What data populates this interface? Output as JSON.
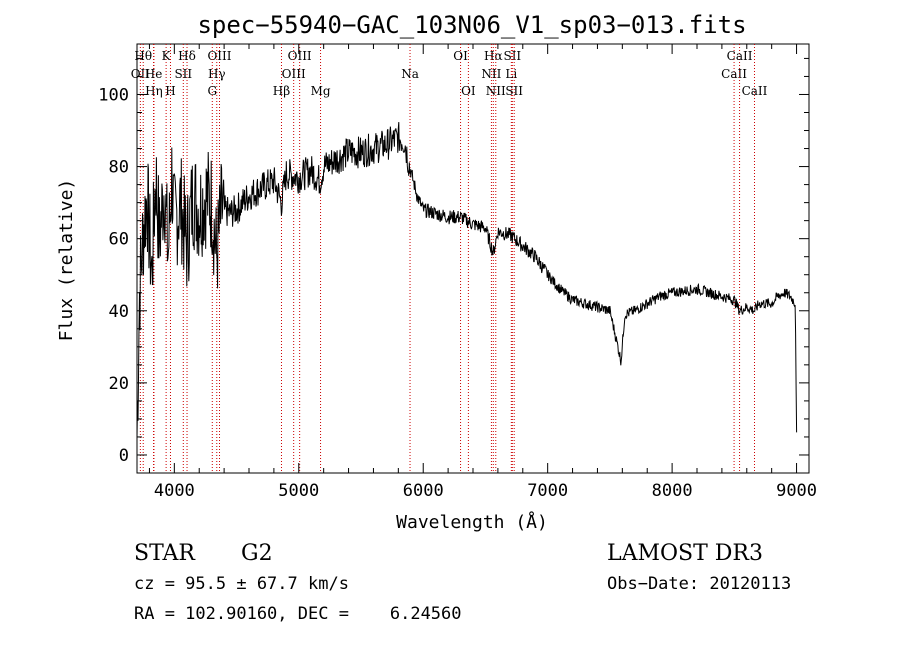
{
  "chart_data": {
    "type": "line",
    "title": "spec−55940−GAC_103N06_V1_sp03−013.fits",
    "xlabel": "Wavelength (Å)",
    "ylabel": "Flux (relative)",
    "xlim": [
      3700,
      9100
    ],
    "ylim": [
      -5,
      114
    ],
    "xticks": [
      4000,
      5000,
      6000,
      7000,
      8000,
      9000
    ],
    "yticks": [
      0,
      20,
      40,
      60,
      80,
      100
    ],
    "line_color": "#000000",
    "marker_color": "#cc0000",
    "spectrum": {
      "name": "flux",
      "anchors": [
        [
          3700,
          5
        ],
        [
          3720,
          45
        ],
        [
          3750,
          62
        ],
        [
          3780,
          72
        ],
        [
          3820,
          50
        ],
        [
          3850,
          78
        ],
        [
          3880,
          60
        ],
        [
          3920,
          75
        ],
        [
          3950,
          55
        ],
        [
          3980,
          78
        ],
        [
          4000,
          64
        ],
        [
          4050,
          70
        ],
        [
          4100,
          58
        ],
        [
          4150,
          72
        ],
        [
          4200,
          68
        ],
        [
          4250,
          72
        ],
        [
          4300,
          70
        ],
        [
          4340,
          55
        ],
        [
          4380,
          68
        ],
        [
          4450,
          67
        ],
        [
          4500,
          68
        ],
        [
          4600,
          72
        ],
        [
          4700,
          74
        ],
        [
          4800,
          76
        ],
        [
          4861,
          70
        ],
        [
          4900,
          78
        ],
        [
          5000,
          77
        ],
        [
          5100,
          79
        ],
        [
          5170,
          76
        ],
        [
          5200,
          80
        ],
        [
          5300,
          82
        ],
        [
          5400,
          84
        ],
        [
          5500,
          84
        ],
        [
          5600,
          85
        ],
        [
          5700,
          86
        ],
        [
          5800,
          88
        ],
        [
          5850,
          87
        ],
        [
          5890,
          80
        ],
        [
          5950,
          72
        ],
        [
          6000,
          68
        ],
        [
          6100,
          67
        ],
        [
          6200,
          66
        ],
        [
          6300,
          66
        ],
        [
          6400,
          64
        ],
        [
          6500,
          63
        ],
        [
          6563,
          56
        ],
        [
          6600,
          62
        ],
        [
          6700,
          61
        ],
        [
          6800,
          58
        ],
        [
          6900,
          55
        ],
        [
          7000,
          50
        ],
        [
          7100,
          46
        ],
        [
          7200,
          43
        ],
        [
          7300,
          42
        ],
        [
          7400,
          41
        ],
        [
          7500,
          40
        ],
        [
          7590,
          26
        ],
        [
          7620,
          39
        ],
        [
          7700,
          40
        ],
        [
          7800,
          42
        ],
        [
          7900,
          44
        ],
        [
          8000,
          45
        ],
        [
          8100,
          45.5
        ],
        [
          8200,
          46
        ],
        [
          8300,
          45
        ],
        [
          8400,
          44
        ],
        [
          8500,
          43
        ],
        [
          8542,
          40
        ],
        [
          8600,
          41
        ],
        [
          8662,
          40
        ],
        [
          8700,
          42
        ],
        [
          8800,
          42
        ],
        [
          8850,
          44
        ],
        [
          8900,
          45
        ],
        [
          8950,
          44
        ],
        [
          8990,
          42
        ],
        [
          9000,
          5
        ]
      ]
    },
    "lines": [
      {
        "label": "OII",
        "wave": 3727,
        "row": 2
      },
      {
        "label": "Hθ",
        "wave": 3750,
        "row": 1
      },
      {
        "label": "Hη",
        "wave": 3836,
        "row": 3
      },
      {
        "label": "He",
        "wave": 3833,
        "row": 2
      },
      {
        "label": "K",
        "wave": 3934,
        "row": 1
      },
      {
        "label": "H",
        "wave": 3969,
        "row": 3
      },
      {
        "label": "Hδ",
        "wave": 4102,
        "row": 1
      },
      {
        "label": "SII",
        "wave": 4072,
        "row": 2
      },
      {
        "label": "OIII",
        "wave": 4363,
        "row": 1
      },
      {
        "label": "Hγ",
        "wave": 4341,
        "row": 2
      },
      {
        "label": "G",
        "wave": 4305,
        "row": 3
      },
      {
        "label": "Hβ",
        "wave": 4861,
        "row": 3
      },
      {
        "label": "OIII",
        "wave": 5007,
        "row": 1
      },
      {
        "label": "OIII",
        "wave": 4959,
        "row": 2
      },
      {
        "label": "Mg",
        "wave": 5175,
        "row": 3
      },
      {
        "label": "Na",
        "wave": 5894,
        "row": 2
      },
      {
        "label": "OI",
        "wave": 6300,
        "row": 1
      },
      {
        "label": "OI",
        "wave": 6363,
        "row": 3
      },
      {
        "label": "Hα",
        "wave": 6563,
        "row": 1
      },
      {
        "label": "NII",
        "wave": 6548,
        "row": 2
      },
      {
        "label": "NII",
        "wave": 6583,
        "row": 3
      },
      {
        "label": "SII",
        "wave": 6716,
        "row": 1
      },
      {
        "label": "Li",
        "wave": 6708,
        "row": 2
      },
      {
        "label": "SII",
        "wave": 6731,
        "row": 3
      },
      {
        "label": "CaII",
        "wave": 8498,
        "row": 2
      },
      {
        "label": "CaII",
        "wave": 8542,
        "row": 1
      },
      {
        "label": "CaII",
        "wave": 8662,
        "row": 3
      }
    ]
  },
  "info": {
    "object_class": "STAR",
    "subclass": "G2",
    "velocity": "cz = 95.5 ± 67.7 km/s",
    "coords": "RA = 102.90160, DEC =    6.24560",
    "survey": "LAMOST DR3",
    "obs_date": "Obs−Date: 20120113"
  }
}
